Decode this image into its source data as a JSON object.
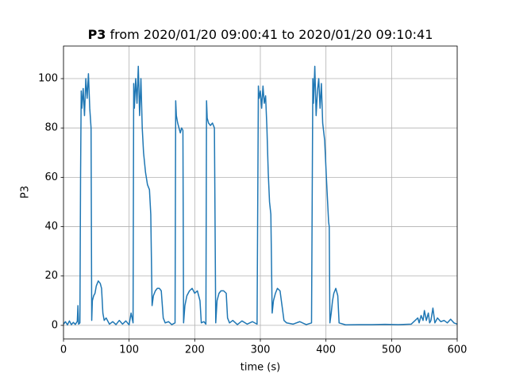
{
  "chart_data": {
    "type": "line",
    "title_bold": "P3",
    "title": "from 2020/01/20 09:00:41 to 2020/01/20 09:10:41",
    "x_label": "time (s)",
    "y_label": "P3",
    "color": "#1f77b4",
    "grid": true,
    "xlim": [
      0,
      600
    ],
    "xticks": [
      0,
      100,
      200,
      300,
      400,
      500,
      600
    ],
    "ylim": [
      -5.5,
      113.2
    ],
    "yticks": [
      0,
      20,
      40,
      60,
      80,
      100
    ],
    "x": [
      0,
      3,
      6,
      9,
      12,
      15,
      18,
      21,
      22,
      23,
      25,
      26,
      27,
      28,
      30,
      32,
      34,
      36,
      38,
      40,
      42,
      43,
      44,
      46,
      48,
      50,
      53,
      56,
      58,
      60,
      62,
      65,
      70,
      75,
      80,
      85,
      90,
      95,
      100,
      103,
      106,
      107,
      108,
      110,
      112,
      114,
      116,
      118,
      120,
      122,
      125,
      128,
      131,
      133,
      135,
      137,
      140,
      143,
      146,
      149,
      152,
      155,
      160,
      165,
      170,
      171,
      172,
      174,
      176,
      178,
      180,
      182,
      183,
      185,
      188,
      192,
      196,
      200,
      204,
      208,
      210,
      214,
      217,
      218,
      219,
      221,
      224,
      227,
      230,
      232,
      234,
      237,
      240,
      244,
      248,
      250,
      253,
      258,
      265,
      272,
      280,
      288,
      295,
      297,
      298,
      300,
      302,
      304,
      306,
      308,
      310,
      312,
      314,
      316,
      318,
      320,
      323,
      326,
      330,
      333,
      336,
      340,
      350,
      360,
      370,
      378,
      380,
      381,
      383,
      385,
      387,
      389,
      391,
      393,
      395,
      398,
      401,
      404,
      405,
      406,
      408,
      410,
      412,
      415,
      418,
      420,
      430,
      450,
      470,
      490,
      510,
      530,
      540,
      542,
      545,
      548,
      550,
      553,
      556,
      558,
      560,
      563,
      566,
      570,
      575,
      580,
      585,
      590,
      595,
      600
    ],
    "values": [
      0.5,
      1.5,
      0.2,
      1.8,
      0.3,
      1.2,
      0.4,
      1.6,
      8,
      0.5,
      1,
      60,
      95,
      88,
      96,
      85,
      100,
      92,
      102,
      88,
      80,
      2,
      10,
      12,
      13,
      16,
      18,
      17,
      15,
      5,
      2,
      3,
      0.5,
      1.5,
      0.3,
      2,
      0.5,
      1.8,
      0.2,
      5,
      1,
      98,
      88,
      100,
      90,
      105,
      85,
      100,
      80,
      70,
      62,
      57,
      55,
      45,
      8,
      12,
      14,
      15,
      15,
      14,
      3,
      1,
      1.5,
      0.3,
      1,
      91,
      85,
      82,
      80,
      78,
      80,
      79,
      1,
      8,
      12,
      14,
      15,
      13,
      14,
      10,
      1,
      1.5,
      0.5,
      91,
      84,
      82,
      81,
      82,
      80,
      1,
      10,
      13,
      14,
      14,
      13,
      3,
      1,
      2,
      0.3,
      1.8,
      0.5,
      1.5,
      0.5,
      97,
      92,
      95,
      88,
      97,
      90,
      93,
      80,
      62,
      50,
      45,
      5,
      10,
      13,
      15,
      14,
      8,
      2,
      1,
      0.5,
      1.5,
      0.3,
      1,
      100,
      90,
      105,
      85,
      95,
      100,
      88,
      98,
      82,
      75,
      58,
      42,
      40,
      1,
      5,
      10,
      13,
      15,
      12,
      1,
      0.2,
      0.3,
      0.3,
      0.4,
      0.3,
      0.5,
      3,
      1,
      4,
      2,
      6,
      2,
      5,
      1,
      2,
      7,
      1,
      3,
      1.5,
      2,
      1,
      2.5,
      1,
      0.5
    ]
  }
}
